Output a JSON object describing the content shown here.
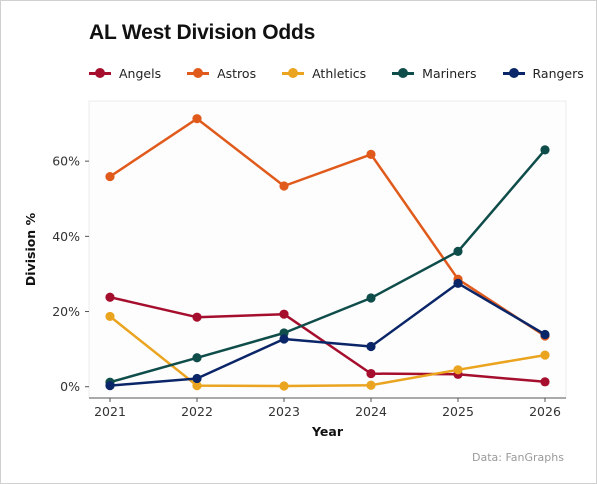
{
  "chart_data": {
    "type": "line",
    "title": "AL West Division Odds",
    "xlabel": "Year",
    "ylabel": "Division %",
    "x": [
      2021,
      2022,
      2023,
      2024,
      2025,
      2026
    ],
    "x_tick_labels": [
      "2021",
      "2022",
      "2023",
      "2024",
      "2025",
      "2026"
    ],
    "y_ticks": [
      0,
      20,
      40,
      60
    ],
    "y_tick_labels": [
      "0%",
      "20%",
      "40%",
      "60%"
    ],
    "ylim": [
      -3,
      76
    ],
    "grid": false,
    "legend_position": "top",
    "series": [
      {
        "name": "Angels",
        "color": "#a50f2d",
        "values": [
          23.8,
          18.5,
          19.3,
          3.5,
          3.3,
          1.3
        ]
      },
      {
        "name": "Astros",
        "color": "#e05a1c",
        "values": [
          55.9,
          71.3,
          53.4,
          61.8,
          28.6,
          13.5
        ]
      },
      {
        "name": "Athletics",
        "color": "#eaa41f",
        "values": [
          18.7,
          0.3,
          0.2,
          0.4,
          4.5,
          8.4
        ]
      },
      {
        "name": "Mariners",
        "color": "#0f4d4a",
        "values": [
          1.2,
          7.7,
          14.3,
          23.6,
          36.0,
          63.0
        ]
      },
      {
        "name": "Rangers",
        "color": "#0b2668",
        "values": [
          0.3,
          2.2,
          12.7,
          10.7,
          27.5,
          13.9
        ]
      }
    ],
    "source": "Data: FanGraphs"
  }
}
